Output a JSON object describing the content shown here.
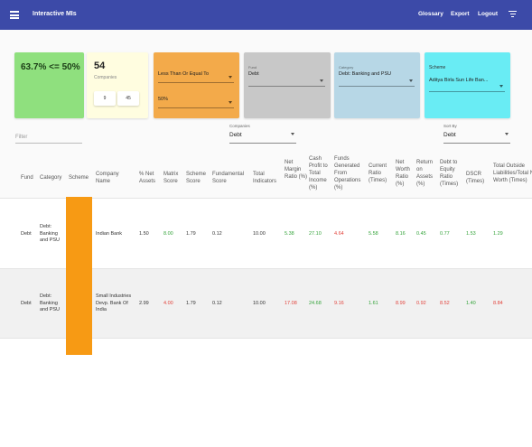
{
  "appbar": {
    "title": "Interactive MIs",
    "links": [
      "Glossary",
      "Export",
      "Logout"
    ]
  },
  "cards": {
    "score": {
      "label": "63.7% <= 50%"
    },
    "companies": {
      "count": "54",
      "label": "Companies",
      "range_min": "9",
      "range_max": "45"
    },
    "condition": {
      "operator": "Less Than Or Equal To",
      "threshold": "50%"
    },
    "fund": {
      "label": "Fund",
      "value": "Debt"
    },
    "category": {
      "label": "Category",
      "value": "Debt: Banking and PSU"
    },
    "scheme": {
      "label": "Scheme",
      "value": "Aditya Birla Sun Life Ban..."
    }
  },
  "toolbar": {
    "filter_placeholder": "Filter",
    "companies_label": "Companies",
    "companies_value": "Debt",
    "sortby_label": "Sort By",
    "sortby_value": "Debt"
  },
  "table": {
    "headers": [
      "Fund",
      "Category",
      "Scheme",
      "Company Name",
      "% Net Assets",
      "Matrix Score",
      "Scheme Score",
      "Fundamental Score",
      "Total Indicators",
      "Net Margin Ratio (%)",
      "Cash Profit to Total Income (%)",
      "Funds Generated From Operations (%)",
      "Current Ratio (Times)",
      "Net Worth Ratio (%)",
      "Return on Assets (%)",
      "Debt to Equity Ratio (Times)",
      "DSCR (Times)",
      "Total Outside Liabilities/Total Net Worth (Times)"
    ],
    "rows": [
      {
        "fund": "Debt",
        "category": "Debt: Banking and PSU",
        "company": "Indian Bank",
        "net_assets": "1.50",
        "matrix": "8.00",
        "scheme_score": "1.79",
        "fundamental": "0.12",
        "indicators": "10.00",
        "net_margin": "5.38",
        "cash_profit": "27.10",
        "funds_generated": "4.64",
        "current_ratio": "5.58",
        "net_worth": "8.16",
        "roa": "0.45",
        "de_ratio": "0.77",
        "dscr": "1.53",
        "tol_tnw": "1.29"
      },
      {
        "fund": "Debt",
        "category": "Debt: Banking and PSU",
        "company": "Small Industries Devp. Bank Of India",
        "net_assets": "2.99",
        "matrix": "4.00",
        "scheme_score": "1.79",
        "fundamental": "0.12",
        "indicators": "10.00",
        "net_margin": "17.08",
        "cash_profit": "24.68",
        "funds_generated": "9.16",
        "current_ratio": "1.61",
        "net_worth": "8.99",
        "roa": "0.92",
        "de_ratio": "8.52",
        "dscr": "1.40",
        "tol_tnw": "8.84"
      }
    ]
  },
  "colors": {
    "appbar": "#3c4aa8",
    "positive": "#34a33a",
    "negative": "#e2433c",
    "scheme_marker": "#f79a14"
  }
}
